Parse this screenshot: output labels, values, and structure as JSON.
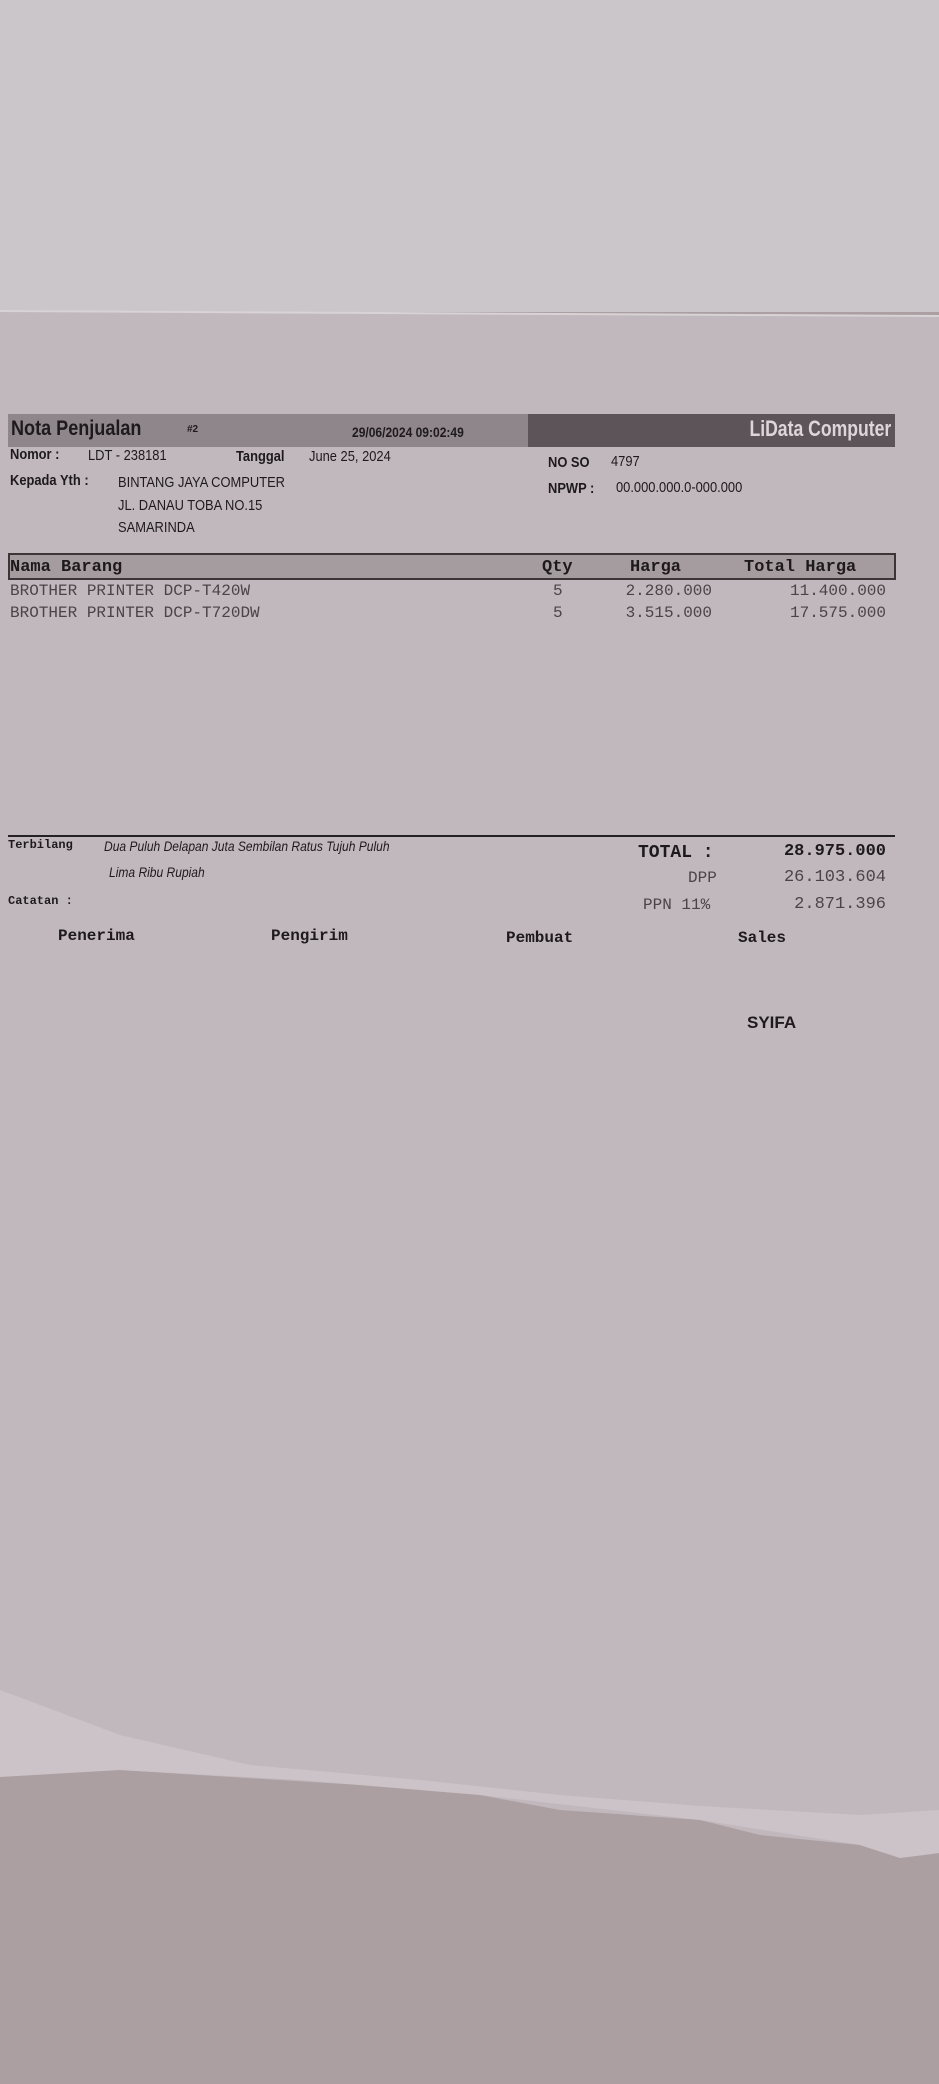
{
  "header": {
    "title": "Nota Penjualan",
    "copy_badge": "#2",
    "printed_at": "29/06/2024 09:02:49",
    "brand": "LiData Computer"
  },
  "info": {
    "nomor_label": "Nomor :",
    "nomor_value": "LDT  - 238181",
    "tanggal_label": "Tanggal",
    "tanggal_value": "June 25, 2024",
    "no_so_label": "NO SO",
    "no_so_value": "4797",
    "npwp_label": "NPWP :",
    "npwp_value": "00.000.000.0-000.000",
    "kepada_label": "Kepada Yth :",
    "kepada_name": "BINTANG JAYA COMPUTER",
    "kepada_address1": "JL. DANAU TOBA NO.15",
    "kepada_address2": "SAMARINDA"
  },
  "table": {
    "headers": [
      "Nama Barang",
      "Qty",
      "Harga",
      "Total Harga"
    ],
    "rows": [
      [
        "BROTHER PRINTER DCP-T420W",
        "5",
        "2.280.000",
        "11.400.000"
      ],
      [
        "BROTHER PRINTER DCP-T720DW",
        "5",
        "3.515.000",
        "17.575.000"
      ]
    ]
  },
  "summary": {
    "terbilang_label": "Terbilang",
    "terbilang_line1": "Dua Puluh Delapan Juta Sembilan Ratus Tujuh Puluh",
    "terbilang_line2": "Lima Ribu  Rupiah",
    "catatan_label": "Catatan :",
    "total_label": "TOTAL :",
    "total_value": "28.975.000",
    "dpp_label": "DPP",
    "dpp_value": "26.103.604",
    "ppn_label": "PPN 11%",
    "ppn_value": "2.871.396"
  },
  "signatures": {
    "penerima": "Penerima",
    "pengirim": "Pengirim",
    "pembuat": "Pembuat",
    "sales": "Sales",
    "sales_name": "SYIFA"
  }
}
